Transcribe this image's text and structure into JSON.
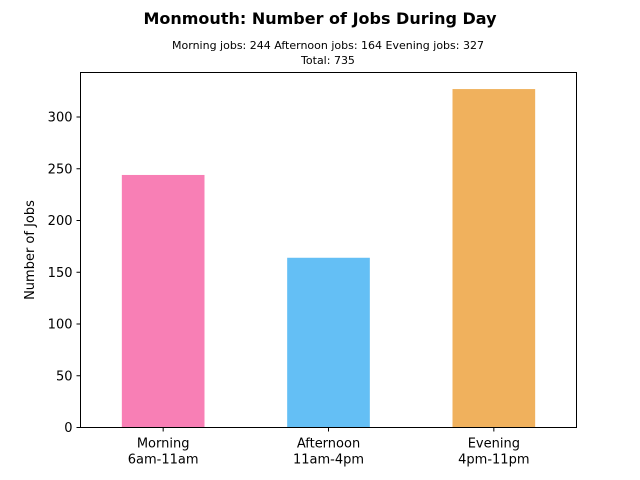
{
  "chart_data": {
    "type": "bar",
    "title": "Monmouth: Number of Jobs During Day",
    "subtitle_lines": [
      "Morning jobs: 244  Afternoon jobs: 164  Evening jobs: 327",
      "Total: 735"
    ],
    "ylabel": "Number of Jobs",
    "xlabel": "",
    "categories": [
      [
        "Morning",
        "6am-11am"
      ],
      [
        "Afternoon",
        "11am-4pm"
      ],
      [
        "Evening",
        "4pm-11pm"
      ]
    ],
    "values": [
      244,
      164,
      327
    ],
    "colors": [
      "#f87fb5",
      "#64bff5",
      "#f0b15d"
    ],
    "ylim": [
      0,
      343
    ],
    "yticks": [
      0,
      50,
      100,
      150,
      200,
      250,
      300
    ],
    "grid": false,
    "legend": "none"
  }
}
